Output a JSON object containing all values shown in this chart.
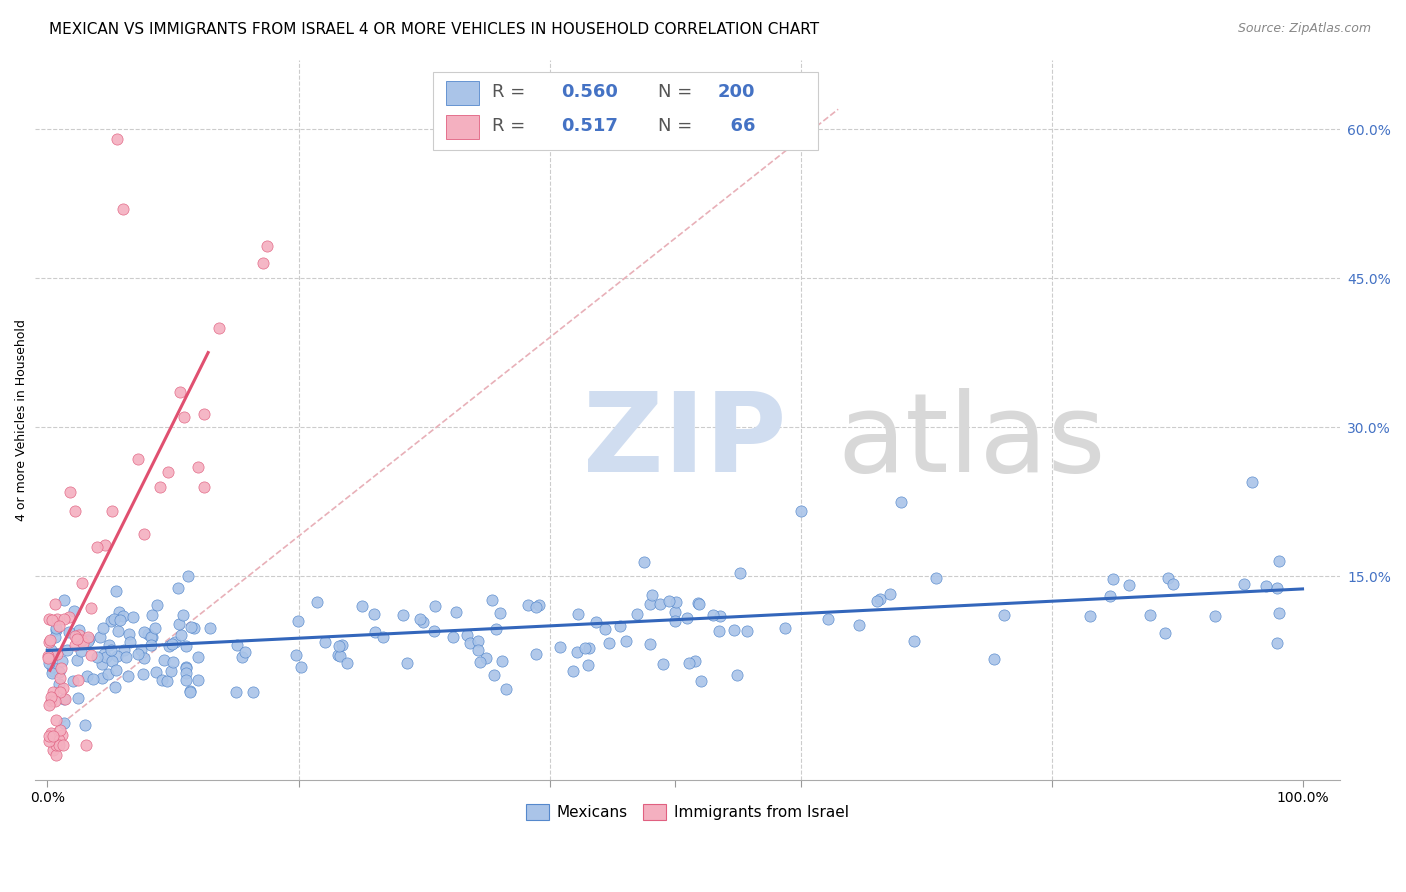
{
  "title": "MEXICAN VS IMMIGRANTS FROM ISRAEL 4 OR MORE VEHICLES IN HOUSEHOLD CORRELATION CHART",
  "source": "Source: ZipAtlas.com",
  "ylabel": "4 or more Vehicles in Household",
  "ytick_values": [
    0.0,
    0.15,
    0.3,
    0.45,
    0.6
  ],
  "ytick_labels": [
    "",
    "15.0%",
    "30.0%",
    "45.0%",
    "60.0%"
  ],
  "xlim": [
    -0.01,
    1.03
  ],
  "ylim": [
    -0.055,
    0.67
  ],
  "blue_R": 0.56,
  "blue_N": 200,
  "pink_R": 0.517,
  "pink_N": 66,
  "blue_fill": "#aac4e8",
  "pink_fill": "#f4b0c0",
  "blue_edge": "#5588cc",
  "pink_edge": "#e06080",
  "blue_line": "#3366bb",
  "pink_line": "#e05070",
  "diag_color": "#e8b0b8",
  "grid_color": "#cccccc",
  "watermark_zip_color": "#d0ddf0",
  "watermark_atlas_color": "#d8d8d8",
  "legend_blue_label": "Mexicans",
  "legend_pink_label": "Immigrants from Israel",
  "title_fontsize": 11,
  "axis_label_fontsize": 9,
  "tick_fontsize": 10,
  "source_fontsize": 9,
  "rn_fontsize": 13,
  "rn_label_color": "#555555",
  "rn_value_color": "#4472c4"
}
